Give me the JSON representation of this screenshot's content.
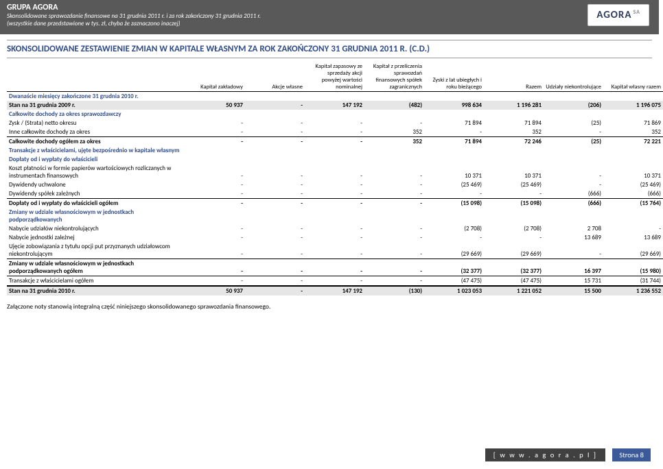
{
  "header": {
    "group": "GRUPA AGORA",
    "line1": "Skonsolidowane sprawozdanie finansowe na 31 grudnia 2011 r. i za rok zakończony 31 grudnia 2011 r.",
    "line2": "(wszystkie dane przedstawione w tys. zł, chyba że zaznaczono inaczej)",
    "logo": "AGORA",
    "logo_sa": "SA"
  },
  "main_title": "SKONSOLIDOWANE ZESTAWIENIE ZMIAN W KAPITALE WŁASNYM ZA ROK ZAKOŃCZONY 31 GRUDNIA 2011 R. (C.D.)",
  "columns": [
    "",
    "Kapitał zakładowy",
    "Akcje własne",
    "Kapitał zapasowy ze sprzedaży akcji powyżej wartości nominalnej",
    "Kapitał z przeliczenia sprawozdań finansowych spółek zagranicznych",
    "Zyski z lat ubiegłych i roku bieżącego",
    "Razem",
    "Udziały niekontrolujące",
    "Kapitał własny razem"
  ],
  "rows": [
    {
      "label": "Dwanaście miesięcy zakończone 31 grudnia 2010 r.",
      "cells": [
        "",
        "",
        "",
        "",
        "",
        "",
        "",
        ""
      ],
      "bold": true,
      "blue": true
    },
    {
      "label": "Stan na 31 grudnia 2009 r.",
      "cells": [
        "50 937",
        "-",
        "147 192",
        "(482)",
        "998 634",
        "1 196 281",
        "(206)",
        "1 196 075"
      ],
      "bold": true,
      "shade": true
    },
    {
      "label": "Całkowite dochody za okres sprawozdawczy",
      "cells": [
        "",
        "",
        "",
        "",
        "",
        "",
        "",
        ""
      ],
      "bold": true,
      "blue": true
    },
    {
      "label": "Zysk / (Strata) netto okresu",
      "cells": [
        "-",
        "-",
        "-",
        "-",
        "71 894",
        "71 894",
        "(25)",
        "71 869"
      ]
    },
    {
      "label": "Inne całkowite dochody za okres",
      "cells": [
        "-",
        "-",
        "-",
        "352",
        "-",
        "352",
        "-",
        "352"
      ]
    },
    {
      "label": "Całkowite dochody ogółem  za okres",
      "cells": [
        "-",
        "-",
        "-",
        "352",
        "71 894",
        "72 246",
        "(25)",
        "72 221"
      ],
      "bold": true,
      "line": true
    },
    {
      "label": "Transakcje z właścicielami, ujęte bezpośrednio w kapitale własnym",
      "cells": [
        "",
        "",
        "",
        "",
        "",
        "",
        "",
        ""
      ],
      "bold": true,
      "blue": true
    },
    {
      "label": "Dopłaty od i wypłaty do właścicieli",
      "cells": [
        "",
        "",
        "",
        "",
        "",
        "",
        "",
        ""
      ],
      "bold": true,
      "blue": true
    },
    {
      "label": "Koszt płatności w formie papierów wartościowych rozliczanych w instrumentach finansowych",
      "cells": [
        "-",
        "-",
        "-",
        "-",
        "10 371",
        "10 371",
        "-",
        "10 371"
      ]
    },
    {
      "label": "Dywidendy uchwalone",
      "cells": [
        "-",
        "-",
        "-",
        "-",
        "(25 469)",
        "(25 469)",
        "-",
        "(25 469)"
      ]
    },
    {
      "label": "Dywidendy spółek zależnych",
      "cells": [
        "-",
        "-",
        "-",
        "-",
        "-",
        "-",
        "(666)",
        "(666)"
      ]
    },
    {
      "label": "Dopłaty od i wypłaty do właścicieli ogółem",
      "cells": [
        "-",
        "-",
        "-",
        "-",
        "(15 098)",
        "(15 098)",
        "(666)",
        "(15 764)"
      ],
      "bold": true,
      "line": true
    },
    {
      "label": "Zmiany w udziale własnościowym w jednostkach podporządkowanych",
      "cells": [
        "",
        "",
        "",
        "",
        "",
        "",
        "",
        ""
      ],
      "bold": true,
      "blue": true
    },
    {
      "label": "Nabycie udziałów niekontrolujących",
      "cells": [
        "-",
        "-",
        "-",
        "-",
        "(2 708)",
        "(2 708)",
        "2 708",
        "-"
      ]
    },
    {
      "label": "Nabycie jednostki zależnej",
      "cells": [
        "-",
        "-",
        "-",
        "-",
        "-",
        "-",
        "13 689",
        "13 689"
      ]
    },
    {
      "label": "Ujęcie zobowiązania z tytułu opcji put przyznanych udziałowcom niekontrolującym",
      "cells": [
        "-",
        "-",
        "-",
        "-",
        "(29 669)",
        "(29 669)",
        "-",
        "(29 669)"
      ]
    },
    {
      "label": "Zmiany w udziale własnościowym w jednostkach podporządkowanych ogółem",
      "cells": [
        "-",
        "-",
        "-",
        "-",
        "(32 377)",
        "(32 377)",
        "16 397",
        "(15 980)"
      ],
      "bold": true,
      "line": true
    },
    {
      "label": "Transakcje z właścicielami ogółem",
      "cells": [
        "-",
        "-",
        "-",
        "-",
        "(47 475)",
        "(47 475)",
        "15 731",
        "(31 744)"
      ],
      "line": true
    },
    {
      "label": "Stan na 31 grudnia 2010 r.",
      "cells": [
        "50 937",
        "-",
        "147 192",
        "(130)",
        "1 023 053",
        "1 221 052",
        "15 500",
        "1 236 552"
      ],
      "bold": true,
      "shade": true,
      "lineBold": true
    }
  ],
  "note": "Załączone noty stanowią integralną część niniejszego skonsolidowanego sprawozdania finansowego.",
  "footer": {
    "url": "[ w w w . a g o r a . p l ]",
    "page": "Strona 8"
  },
  "colors": {
    "header_bg": "#595959",
    "accent": "#2f4b8a",
    "shade": "#e6e6e6",
    "footer_url_bg": "#404040",
    "footer_page_bg": "#3b5a99"
  }
}
